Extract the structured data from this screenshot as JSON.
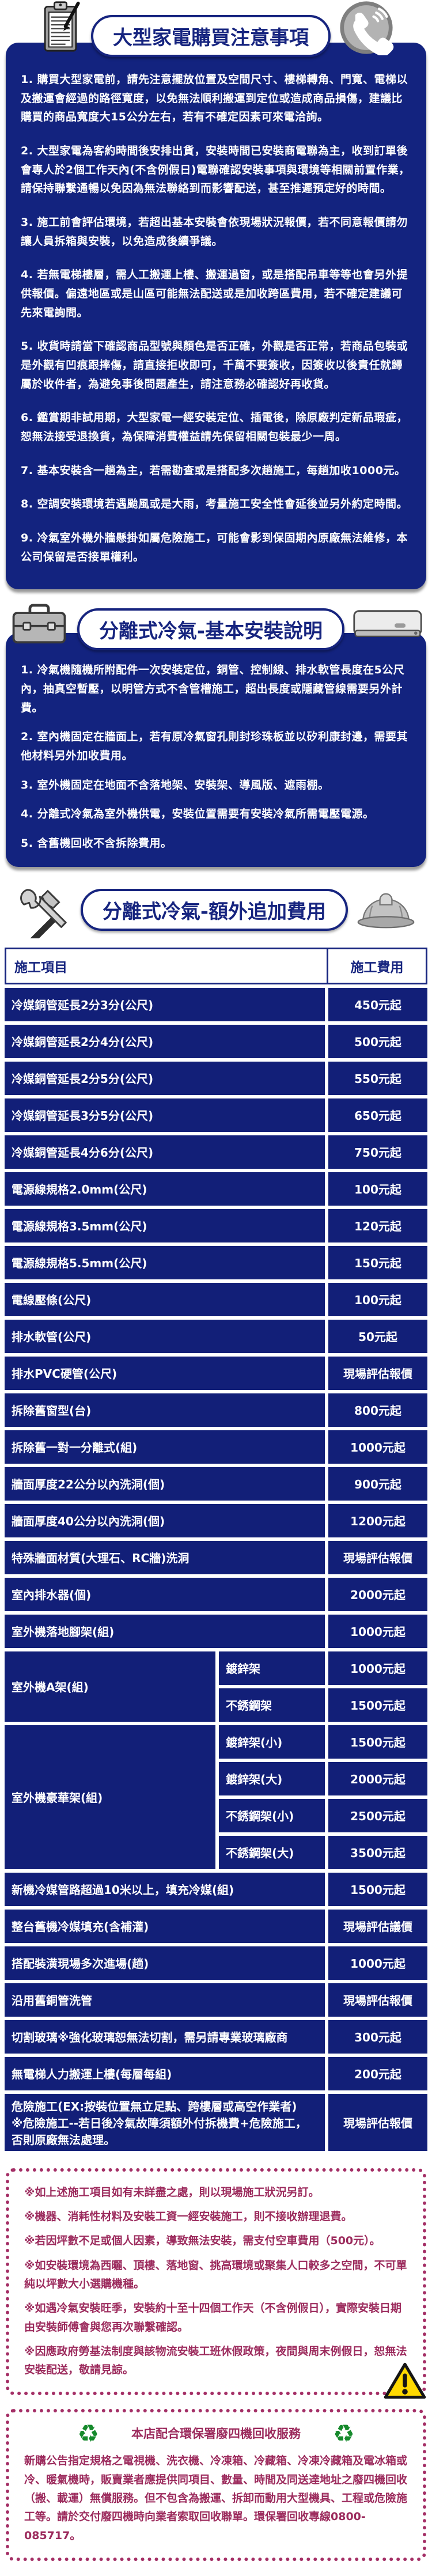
{
  "colors": {
    "navy": "#13237f",
    "table_navy": "#121f78",
    "maroon": "#9c2b5d",
    "warning_yellow": "#ffd900",
    "recycle_green": "#168a2c"
  },
  "section1": {
    "title": "大型家電購買注意事項",
    "items": [
      "1. 購買大型家電前，請先注意擺放位置及空間尺寸、樓梯轉角、門寬、電梯以及搬運會經過的路徑寬度，以免無法順利搬運到定位或造成商品損傷，建議比購買的商品寬度大15公分左右，若有不確定因素可來電洽詢。",
      "2. 大型家電為客約時間後安排出貨，安裝時間已安裝商電聯為主，收到訂單後會專人於2個工作天內(不含例假日)電聯確認安裝事項與環境等相關前置作業，請保持聯繫通暢以免因為無法聯絡到而影響配送，甚至推遲預定好的時間。",
      "3. 施工前會評估環境，若超出基本安裝會依現場狀況報價，若不同意報價請勿讓人員拆箱與安裝，以免造成後續爭議。",
      "4. 若無電梯樓層，需人工搬運上樓、搬運過窗，或是搭配吊車等等也會另外提供報價。偏遠地區或是山區可能無法配送或是加收跨區費用，若不確定建議可先來電詢問。",
      "5. 收貨時請當下確認商品型號與顏色是否正確，外觀是否正常，若商品包裝或是外觀有凹痕跟摔傷，請直接拒收即可，千萬不要簽收，因簽收以後責任就歸屬於收件者，為避免事後問題產生，請注意務必確認好再收貨。",
      "6. 鑑賞期非試用期，大型家電一經安裝定位、插電後，除原廠判定新品瑕疵，恕無法接受退換貨，為保障消費權益請先保留相關包裝最少一周。",
      "7. 基本安裝含一趟為主，若需勘查或是搭配多次趟施工，每趟加收1000元。",
      "8. 空調安裝環境若遇颱風或是大雨，考量施工安全性會延後並另外約定時間。",
      "9. 冷氣室外機外牆懸掛如屬危險施工，可能會影到保固期內原廠無法維修，本公司保留是否接單權利。"
    ]
  },
  "section2": {
    "title": "分離式冷氣-基本安裝說明",
    "items": [
      "1. 冷氣機隨機所附配件一次安裝定位，銅管、控制線、排水軟管長度在5公尺內，抽真空暫壓，以明管方式不含管槽施工，超出長度或隱藏管線需要另外計費。",
      "2. 室內機固定在牆面上，若有原冷氣窗孔則封珍珠板並以矽利康封邊，需要其他材料另外加收費用。",
      "3. 室外機固定在地面不含落地架、安裝架、導風版、遮雨棚。",
      "4. 分離式冷氣為室外機供電，安裝位置需要有安裝冷氣所需電壓電源。",
      "5. 含舊機回收不含拆除費用。"
    ]
  },
  "section3": {
    "title": "分離式冷氣-額外追加費用"
  },
  "fees_table": {
    "col_item": "施工項目",
    "col_fee": "施工費用",
    "rows": [
      {
        "item": "冷媒銅管延長2分3分(公尺)",
        "fee": "450元起"
      },
      {
        "item": "冷媒銅管延長2分4分(公尺)",
        "fee": "500元起"
      },
      {
        "item": "冷媒銅管延長2分5分(公尺)",
        "fee": "550元起"
      },
      {
        "item": "冷媒銅管延長3分5分(公尺)",
        "fee": "650元起"
      },
      {
        "item": "冷媒銅管延長4分6分(公尺)",
        "fee": "750元起"
      },
      {
        "item": "電源線規格2.0mm(公尺)",
        "fee": "100元起"
      },
      {
        "item": "電源線規格3.5mm(公尺)",
        "fee": "120元起"
      },
      {
        "item": "電源線規格5.5mm(公尺)",
        "fee": "150元起"
      },
      {
        "item": "電線壓條(公尺)",
        "fee": "100元起"
      },
      {
        "item": "排水軟管(公尺)",
        "fee": "50元起"
      },
      {
        "item": "排水PVC硬管(公尺)",
        "fee": "現場評估報價"
      },
      {
        "item": "拆除舊窗型(台)",
        "fee": "800元起"
      },
      {
        "item": "拆除舊一對一分離式(組)",
        "fee": "1000元起"
      },
      {
        "item": "牆面厚度22公分以內洗洞(個)",
        "fee": "900元起"
      },
      {
        "item": "牆面厚度40公分以內洗洞(個)",
        "fee": "1200元起"
      },
      {
        "item": "特殊牆面材質(大理石、RC牆)洗洞",
        "fee": "現場評估報價"
      },
      {
        "item": "室內排水器(個)",
        "fee": "2000元起"
      },
      {
        "item": "室外機落地腳架(組)",
        "fee": "1000元起"
      },
      {
        "group": "室外機A架(組)",
        "subs": [
          {
            "item": "鍍鋅架",
            "fee": "1000元起"
          },
          {
            "item": "不銹鋼架",
            "fee": "1500元起"
          }
        ]
      },
      {
        "group": "室外機豪華架(組)",
        "subs": [
          {
            "item": "鍍鋅架(小)",
            "fee": "1500元起"
          },
          {
            "item": "鍍鋅架(大)",
            "fee": "2000元起"
          },
          {
            "item": "不銹鋼架(小)",
            "fee": "2500元起"
          },
          {
            "item": "不銹鋼架(大)",
            "fee": "3500元起"
          }
        ]
      },
      {
        "item": "新機冷媒管路超過10米以上，填充冷媒(組)",
        "fee": "1500元起"
      },
      {
        "item": "整台舊機冷媒填充(含補灌)",
        "fee": "現場評估議價"
      },
      {
        "item": "搭配裝潢現場多次進場(趟)",
        "fee": "1000元起"
      },
      {
        "item": "沿用舊銅管洗管",
        "fee": "現場評估報價"
      },
      {
        "item": "切割玻璃※強化玻璃恕無法切割，需另請專業玻璃廠商",
        "fee": "300元起"
      },
      {
        "item": "無電梯人力搬運上樓(每層每組)",
        "fee": "200元起"
      },
      {
        "item": "危險施工(EX:按裝位置無立足點、跨樓層或高空作業者)\n※危險施工--若日後冷氣故障須額外付拆機費+危險施工，否則原廠無法處理。",
        "fee": "現場評估報價"
      }
    ]
  },
  "notes": {
    "items": [
      "※如上述施工項目如有未詳盡之處，則以現場施工狀況另訂。",
      "※機器、消耗性材料及安裝工資一經安裝施工，則不接收辦理退費。",
      "※若因坪數不足或個人因素，導致無法安裝，需支付空車費用（500元）。",
      "※如安裝環境為西曬、頂樓、落地窗、挑高環境或聚集人口較多之空間，不可單純以坪數大小選購機種。",
      "※如遇冷氣安裝旺季，安裝約十至十四個工作天（不含例假日），實際安裝日期由安裝師傅會與您再次聯繫確認。",
      "※因應政府勞基法制度與該物流安裝工班休假政策，夜間與周末例假日，恕無法安裝配送，敬請見諒。"
    ]
  },
  "recycle": {
    "symbol": "♻",
    "title": "本店配合環保署廢四機回收服務",
    "body": "新購公告指定規格之電視機、洗衣機、冷凍箱、冷藏箱、冷凍冷藏箱及電冰箱或冷、暖氣機時，販賣業者應提供同項目、數量、時間及同送達地址之廢四機回收（搬、載運）無償服務。但不包含為搬運、拆卸而動用大型機具、工程或危險施工等。請於交付廢四機時向業者索取回收聯單。環保署回收專線0800-085717。",
    "hotline": "0800-085717"
  }
}
